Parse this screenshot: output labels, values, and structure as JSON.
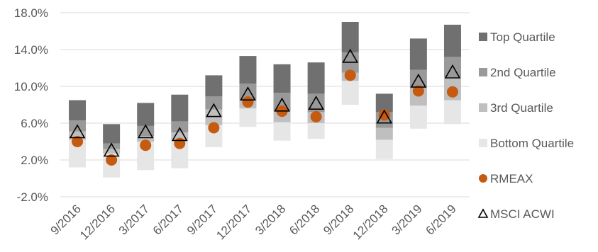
{
  "chart_data": {
    "type": "bar",
    "stacked": true,
    "categories": [
      "9/2016",
      "12/2016",
      "3/2017",
      "6/2017",
      "9/2017",
      "12/2017",
      "3/2018",
      "6/2018",
      "9/2018",
      "12/2018",
      "3/2019",
      "6/2019"
    ],
    "y_ticks": [
      "18.0%",
      "14.0%",
      "10.0%",
      "6.0%",
      "2.0%",
      "-2.0%"
    ],
    "ylim": [
      -2.0,
      18.0
    ],
    "y_unit": "%",
    "grid": true,
    "legend_position": "right",
    "series": [
      {
        "name": "Bottom Quartile",
        "color": "#e6e6e6",
        "low": [
          1.2,
          0.1,
          0.9,
          1.1,
          3.4,
          5.6,
          4.1,
          4.3,
          8.0,
          2.1,
          5.4,
          5.9
        ],
        "high": [
          4.2,
          2.7,
          4.0,
          4.2,
          5.8,
          7.6,
          6.1,
          6.0,
          10.6,
          4.2,
          7.9,
          8.5
        ]
      },
      {
        "name": "3rd Quartile",
        "color": "#bfbfbf",
        "low": [
          4.2,
          2.7,
          4.0,
          4.2,
          5.8,
          7.6,
          6.1,
          6.0,
          10.6,
          4.2,
          7.9,
          8.5
        ],
        "high": [
          5.1,
          3.2,
          4.6,
          5.0,
          7.5,
          8.5,
          7.3,
          7.2,
          11.5,
          5.5,
          9.8,
          11.0
        ]
      },
      {
        "name": "2nd Quartile",
        "color": "#999999",
        "low": [
          5.1,
          3.2,
          4.6,
          5.0,
          7.5,
          8.5,
          7.3,
          7.2,
          11.5,
          5.5,
          9.8,
          11.0
        ],
        "high": [
          6.3,
          3.8,
          5.7,
          6.2,
          8.9,
          10.3,
          9.3,
          9.2,
          13.7,
          7.2,
          11.8,
          13.2
        ]
      },
      {
        "name": "Top Quartile",
        "color": "#707070",
        "low": [
          6.3,
          3.8,
          5.7,
          6.2,
          8.9,
          10.3,
          9.3,
          9.2,
          13.7,
          7.2,
          11.8,
          13.2
        ],
        "high": [
          8.5,
          5.9,
          8.2,
          9.1,
          11.2,
          13.3,
          12.4,
          12.6,
          17.0,
          9.2,
          15.2,
          16.7
        ]
      }
    ],
    "markers": [
      {
        "name": "RMEAX",
        "shape": "circle",
        "color": "#c55a11",
        "values": [
          4.0,
          2.0,
          3.6,
          3.8,
          5.5,
          8.3,
          7.3,
          6.7,
          11.2,
          6.9,
          9.5,
          9.4
        ]
      },
      {
        "name": "MSCI ACWI",
        "shape": "triangle",
        "color": "#000000",
        "values": [
          5.0,
          3.0,
          5.0,
          4.7,
          7.3,
          9.1,
          7.9,
          8.1,
          13.2,
          6.6,
          10.5,
          11.5
        ]
      }
    ],
    "legend": [
      {
        "name": "Top Quartile",
        "swatch": "square",
        "color": "#707070"
      },
      {
        "name": "2nd Quartile",
        "swatch": "square",
        "color": "#999999"
      },
      {
        "name": "3rd Quartile",
        "swatch": "square",
        "color": "#bfbfbf"
      },
      {
        "name": "Bottom Quartile",
        "swatch": "square",
        "color": "#e6e6e6"
      },
      {
        "name": "RMEAX",
        "swatch": "circle",
        "color": "#c55a11"
      },
      {
        "name": "MSCI ACWI",
        "swatch": "triangle",
        "color": "#000000"
      }
    ]
  }
}
